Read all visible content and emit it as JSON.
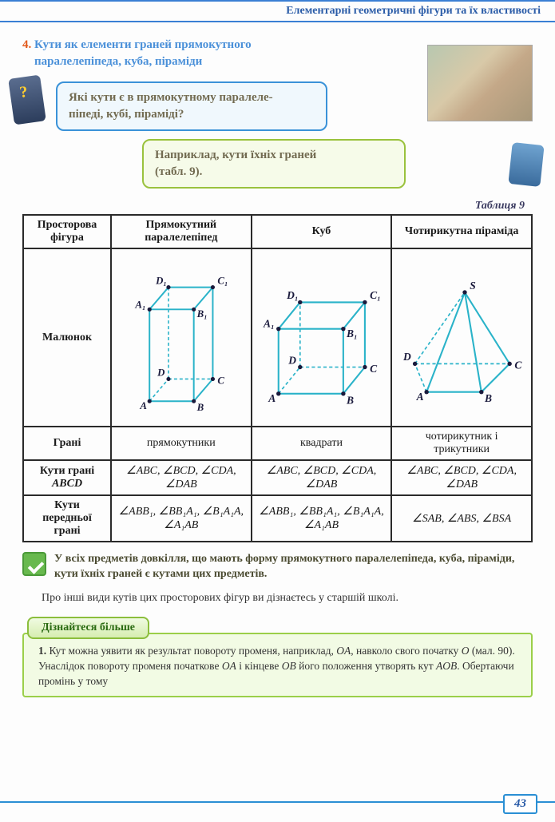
{
  "header": {
    "chapter": "Елементарні геометричні фігури та їх властивості"
  },
  "section": {
    "num": "4.",
    "title_l1": "Кути як елементи граней прямокутного",
    "title_l2": "паралелепіпеда, куба, піраміди"
  },
  "question": {
    "line1": "Які кути є в прямокутному паралеле-",
    "line2": "піпеді, кубі, піраміді?"
  },
  "answer": {
    "line1": "Наприклад, кути їхніх граней",
    "line2": "(табл. 9)."
  },
  "table_label": "Таблиця 9",
  "table": {
    "headers": {
      "c0": "Просторова фігура",
      "c1": "Прямокутний паралелепіпед",
      "c2": "Куб",
      "c3": "Чотирикутна піраміда"
    },
    "rows": {
      "r1": {
        "label": "Малюнок"
      },
      "r2": {
        "label": "Грані",
        "c1": "прямокутники",
        "c2": "квадрати",
        "c3": "чотирикутник і трикутники"
      },
      "r3": {
        "label": "Кути грані ABCD",
        "c1": "∠ABC, ∠BCD, ∠CDA, ∠DAB",
        "c2": "∠ABC, ∠BCD, ∠CDA, ∠DAB",
        "c3": "∠ABC, ∠BCD, ∠CDA, ∠DAB"
      },
      "r4": {
        "label": "Кути передньої грані",
        "c1": "∠ABB₁, ∠BB₁A₁, ∠B₁A₁A, ∠A₁AB",
        "c2": "∠ABB₁, ∠BB₁A₁, ∠B₁A₁A, ∠A₁AB",
        "c3": "∠SAB, ∠ABS, ∠BSA"
      }
    }
  },
  "checkmark_text": "У всіх предметів довкілля, що мають форму прямокутного паралелепіпеда, куба, піраміди, кути їхніх граней є кутами цих предметів.",
  "body_para": "Про інші види кутів цих просторових фігур ви дізнаєтесь у старшій школі.",
  "learn_more": {
    "tab": "Дізнайтеся більше",
    "num": "1.",
    "text": "Кут можна уявити як результат повороту променя, наприклад, OA, навколо свого початку O (мал. 90). Унаслідок повороту променя початкове OA і кінцеве OB його положення утворять кут AOB. Обертаючи промінь у тому"
  },
  "colors": {
    "edge": "#2ab3c9",
    "border": "#2a2a2a",
    "accent": "#3a7fd4",
    "green": "#9ac23d"
  },
  "page_number": "43",
  "figures": {
    "parallelepiped": {
      "solid": [
        [
          20,
          188,
          76,
          188
        ],
        [
          76,
          188,
          76,
          72
        ],
        [
          76,
          72,
          20,
          72
        ],
        [
          20,
          72,
          20,
          188
        ],
        [
          20,
          72,
          44,
          44
        ],
        [
          76,
          72,
          100,
          44
        ],
        [
          100,
          44,
          100,
          160
        ],
        [
          100,
          160,
          76,
          188
        ],
        [
          44,
          44,
          100,
          44
        ]
      ],
      "dashed": [
        [
          20,
          188,
          44,
          160
        ],
        [
          44,
          160,
          100,
          160
        ],
        [
          44,
          160,
          44,
          44
        ]
      ],
      "points": [
        [
          20,
          188,
          "A"
        ],
        [
          76,
          188,
          "B"
        ],
        [
          100,
          160,
          "C"
        ],
        [
          44,
          160,
          "D"
        ],
        [
          20,
          72,
          "A₁"
        ],
        [
          76,
          72,
          "B₁"
        ],
        [
          100,
          44,
          "C₁"
        ],
        [
          44,
          44,
          "D₁"
        ]
      ]
    },
    "cube": {
      "solid": [
        [
          18,
          170,
          96,
          170
        ],
        [
          96,
          170,
          96,
          92
        ],
        [
          96,
          92,
          18,
          92
        ],
        [
          18,
          92,
          18,
          170
        ],
        [
          18,
          92,
          44,
          60
        ],
        [
          96,
          92,
          122,
          60
        ],
        [
          122,
          60,
          122,
          138
        ],
        [
          122,
          138,
          96,
          170
        ],
        [
          44,
          60,
          122,
          60
        ]
      ],
      "dashed": [
        [
          18,
          170,
          44,
          138
        ],
        [
          44,
          138,
          122,
          138
        ],
        [
          44,
          138,
          44,
          60
        ]
      ],
      "points": [
        [
          18,
          170,
          "A"
        ],
        [
          96,
          170,
          "B"
        ],
        [
          122,
          138,
          "C"
        ],
        [
          44,
          138,
          "D"
        ],
        [
          18,
          92,
          "A₁"
        ],
        [
          96,
          92,
          "B₁"
        ],
        [
          122,
          60,
          "C₁"
        ],
        [
          44,
          60,
          "D₁"
        ]
      ]
    },
    "pyramid": {
      "solid": [
        [
          28,
          168,
          94,
          168
        ],
        [
          94,
          168,
          128,
          134
        ],
        [
          28,
          168,
          74,
          48
        ],
        [
          94,
          168,
          74,
          48
        ],
        [
          128,
          134,
          74,
          48
        ]
      ],
      "dashed": [
        [
          28,
          168,
          14,
          134
        ],
        [
          14,
          134,
          128,
          134
        ],
        [
          14,
          134,
          74,
          48
        ]
      ],
      "points": [
        [
          28,
          168,
          "A"
        ],
        [
          94,
          168,
          "B"
        ],
        [
          128,
          134,
          "C"
        ],
        [
          14,
          134,
          "D"
        ],
        [
          74,
          48,
          "S"
        ]
      ]
    }
  }
}
